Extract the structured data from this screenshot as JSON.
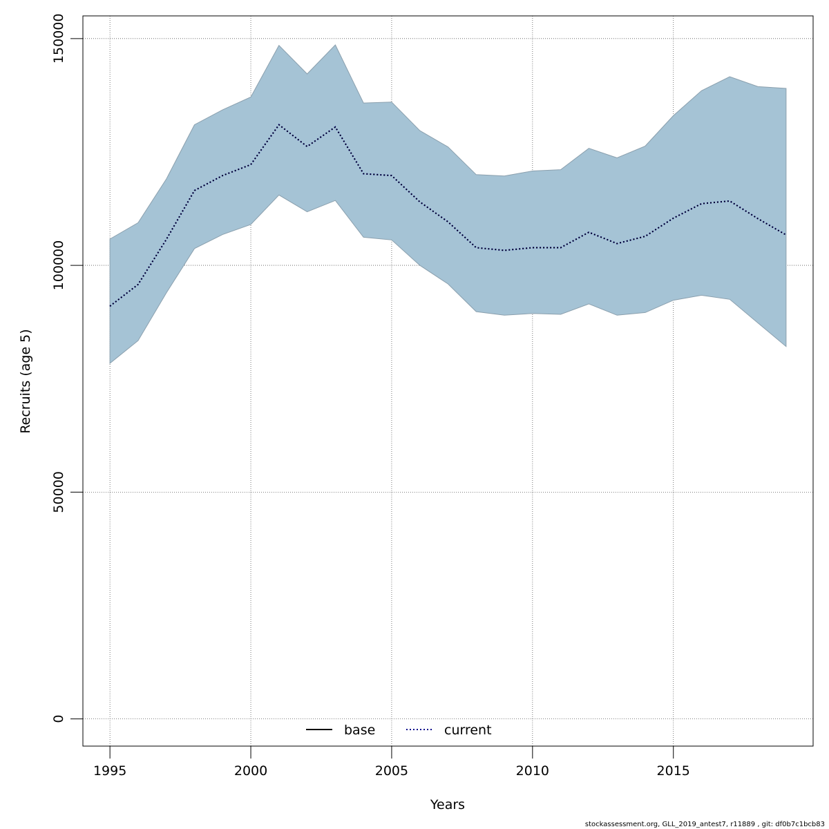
{
  "chart_data": {
    "type": "line",
    "title": "",
    "xlabel": "Years",
    "ylabel": "Recruits (age 5)",
    "x_ticks": [
      1995,
      2000,
      2005,
      2010,
      2015
    ],
    "y_ticks": [
      0,
      50000,
      100000,
      150000
    ],
    "x_tick_labels": [
      "1995",
      "2000",
      "2005",
      "2010",
      "2015"
    ],
    "y_tick_labels": [
      "0",
      "50000",
      "100000",
      "150000"
    ],
    "xlim": [
      1994.04,
      2019.96
    ],
    "ylim": [
      -6000,
      155000
    ],
    "grid": true,
    "x": [
      1995,
      1996,
      1997,
      1998,
      1999,
      2000,
      2001,
      2002,
      2003,
      2004,
      2005,
      2006,
      2007,
      2008,
      2009,
      2010,
      2011,
      2012,
      2013,
      2014,
      2015,
      2016,
      2017,
      2018,
      2019
    ],
    "series": [
      {
        "name": "current",
        "style": "dotted",
        "color": "#00008b",
        "values": [
          91000,
          95800,
          105700,
          116500,
          119800,
          122200,
          131000,
          126200,
          130500,
          120200,
          119800,
          114000,
          109600,
          103900,
          103300,
          103900,
          103900,
          107300,
          104800,
          106400,
          110400,
          113600,
          114200,
          110300,
          106700
        ],
        "lower": [
          78400,
          83400,
          93900,
          103700,
          106800,
          109000,
          115500,
          111800,
          114300,
          106200,
          105600,
          100000,
          95900,
          89800,
          89000,
          89400,
          89200,
          91500,
          89000,
          89600,
          92300,
          93400,
          92500,
          87300,
          82100
        ],
        "upper": [
          105800,
          109400,
          119000,
          131000,
          134300,
          137100,
          148500,
          142200,
          148600,
          135800,
          136000,
          129700,
          126100,
          120000,
          119700,
          120800,
          121100,
          125800,
          123700,
          126300,
          133000,
          138500,
          141600,
          139400,
          139000
        ]
      }
    ],
    "legend": {
      "position": "bottom",
      "entries": [
        {
          "label": "base",
          "style": "solid",
          "color": "#000000"
        },
        {
          "label": "current",
          "style": "dotted",
          "color": "#00008b"
        }
      ]
    },
    "band_color": "#a5c3d5"
  },
  "footer_text": "stockassessment.org, GLL_2019_antest7, r11889 , git: df0b7c1bcb83"
}
